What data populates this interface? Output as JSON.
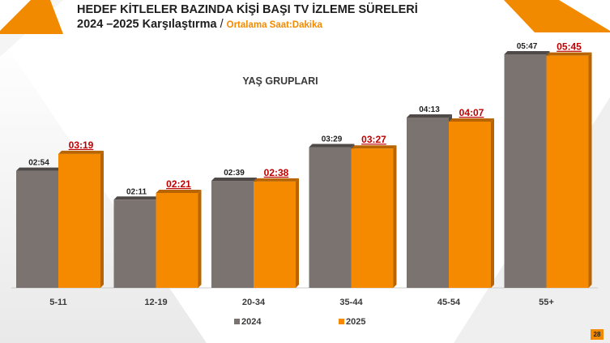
{
  "header": {
    "title_line1": "HEDEF KİTLELER BAZINDA KİŞİ BAŞI TV İZLEME SÜRELERİ",
    "title_line2": "2024 –2025 Karşılaştırma",
    "separator": "/",
    "subtitle": "Ortalama Saat:Dakika"
  },
  "page_number": "28",
  "colors": {
    "series_2024": "#7a7370",
    "series_2025": "#f58a00",
    "label_2025": "#c00000",
    "accent": "#f28a00"
  },
  "chart_data": {
    "type": "bar",
    "title": "YAŞ GRUPLARI",
    "categories": [
      "5-11",
      "12-19",
      "20-34",
      "35-44",
      "45-54",
      "55+"
    ],
    "series": [
      {
        "name": "2024",
        "values": [
          "02:54",
          "02:11",
          "02:39",
          "03:29",
          "04:13",
          "05:47"
        ]
      },
      {
        "name": "2025",
        "values": [
          "03:19",
          "02:21",
          "02:38",
          "03:27",
          "04:07",
          "05:45"
        ]
      }
    ],
    "ylim_minutes": [
      0,
      360
    ],
    "grid": false,
    "legend_position": "bottom"
  }
}
